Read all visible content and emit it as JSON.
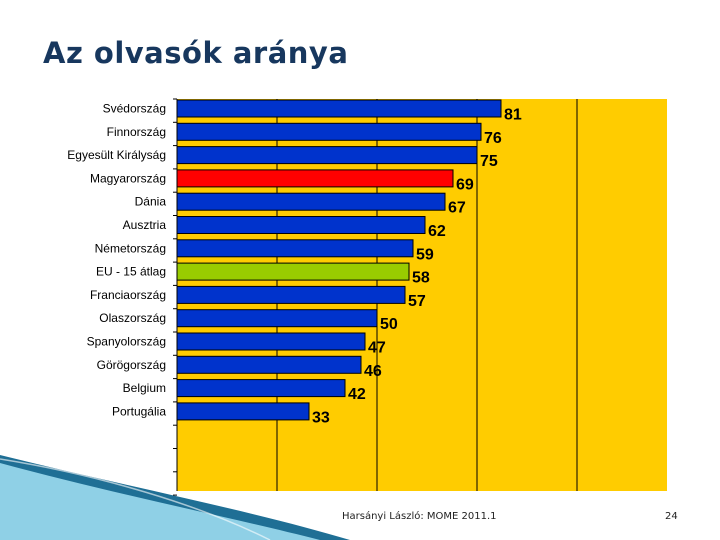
{
  "slide": {
    "title": "Az olvasók aránya",
    "footer": "Harsányi László: MOME 2011.1",
    "page_number": "24"
  },
  "colors": {
    "plot_bg": "#ffcc00",
    "bar_default": "#0033cc",
    "bar_hungary": "#ff0000",
    "bar_eu": "#99cc00",
    "bar_border": "#000000",
    "title": "#17375e",
    "swoosh_dark": "#1f6f95",
    "swoosh_light": "#8fd0e6"
  },
  "chart_data": {
    "type": "bar",
    "orientation": "horizontal",
    "title": "Az olvasók aránya",
    "xlabel": "",
    "ylabel": "",
    "xlim": [
      0,
      100
    ],
    "grid": true,
    "categories": [
      "Svédország",
      "Finnország",
      "Egyesült Királyság",
      "Magyarország",
      "Dánia",
      "Ausztria",
      "Németország",
      "EU - 15 átlag",
      "Franciaország",
      "Olaszország",
      "Spanyolország",
      "Görögország",
      "Belgium",
      "Portugália"
    ],
    "values": [
      81,
      76,
      75,
      69,
      67,
      62,
      59,
      58,
      57,
      50,
      47,
      46,
      42,
      33
    ],
    "highlight": {
      "Magyarország": "bar_hungary",
      "EU - 15 átlag": "bar_eu"
    }
  }
}
